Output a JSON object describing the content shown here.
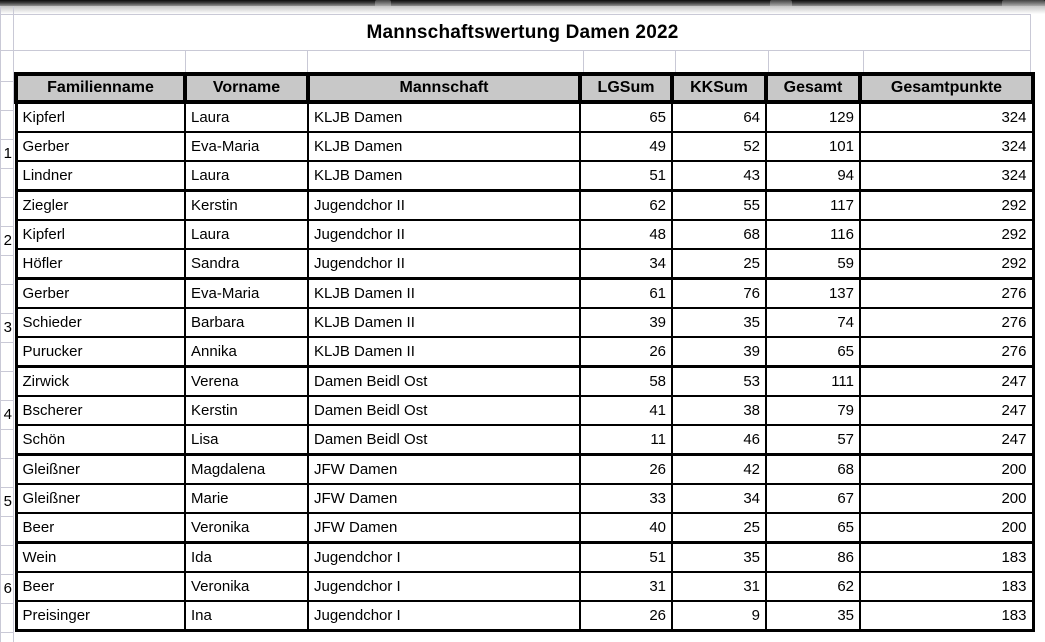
{
  "window": {
    "tab_strip_color": "#2a2a2a"
  },
  "sheet": {
    "title": "Mannschaftswertung Damen 2022",
    "grid_color": "#c9c9d6",
    "header_bg": "#c8c8c8",
    "table_border_color": "#000000",
    "columns": [
      "Familienname",
      "Vorname",
      "Mannschaft",
      "LGSum",
      "KKSum",
      "Gesamt",
      "Gesamtpunkte"
    ],
    "column_alignments": [
      "left",
      "left",
      "left",
      "right",
      "right",
      "right",
      "right"
    ],
    "rows": [
      {
        "rank": "",
        "cells": [
          "Kipferl",
          "Laura",
          "KLJB Damen",
          "65",
          "64",
          "129",
          "324"
        ]
      },
      {
        "rank": "1",
        "cells": [
          "Gerber",
          "Eva-Maria",
          "KLJB Damen",
          "49",
          "52",
          "101",
          "324"
        ]
      },
      {
        "rank": "",
        "cells": [
          "Lindner",
          "Laura",
          "KLJB Damen",
          "51",
          "43",
          "94",
          "324"
        ]
      },
      {
        "rank": "",
        "cells": [
          "Ziegler",
          "Kerstin",
          "Jugendchor II",
          "62",
          "55",
          "117",
          "292"
        ]
      },
      {
        "rank": "2",
        "cells": [
          "Kipferl",
          "Laura",
          "Jugendchor II",
          "48",
          "68",
          "116",
          "292"
        ]
      },
      {
        "rank": "",
        "cells": [
          "Höfler",
          "Sandra",
          "Jugendchor II",
          "34",
          "25",
          "59",
          "292"
        ]
      },
      {
        "rank": "",
        "cells": [
          "Gerber",
          "Eva-Maria",
          "KLJB Damen II",
          "61",
          "76",
          "137",
          "276"
        ]
      },
      {
        "rank": "3",
        "cells": [
          "Schieder",
          "Barbara",
          "KLJB Damen II",
          "39",
          "35",
          "74",
          "276"
        ]
      },
      {
        "rank": "",
        "cells": [
          "Purucker",
          "Annika",
          "KLJB Damen II",
          "26",
          "39",
          "65",
          "276"
        ]
      },
      {
        "rank": "",
        "cells": [
          "Zirwick",
          "Verena",
          "Damen Beidl Ost",
          "58",
          "53",
          "111",
          "247"
        ]
      },
      {
        "rank": "4",
        "cells": [
          "Bscherer",
          "Kerstin",
          "Damen Beidl Ost",
          "41",
          "38",
          "79",
          "247"
        ]
      },
      {
        "rank": "",
        "cells": [
          "Schön",
          "Lisa",
          "Damen Beidl Ost",
          "11",
          "46",
          "57",
          "247"
        ]
      },
      {
        "rank": "",
        "cells": [
          "Gleißner",
          "Magdalena",
          "JFW Damen",
          "26",
          "42",
          "68",
          "200"
        ]
      },
      {
        "rank": "5",
        "cells": [
          "Gleißner",
          "Marie",
          "JFW Damen",
          "33",
          "34",
          "67",
          "200"
        ]
      },
      {
        "rank": "",
        "cells": [
          "Beer",
          "Veronika",
          "JFW Damen",
          "40",
          "25",
          "65",
          "200"
        ]
      },
      {
        "rank": "",
        "cells": [
          "Wein",
          "Ida",
          "Jugendchor I",
          "51",
          "35",
          "86",
          "183"
        ]
      },
      {
        "rank": "6",
        "cells": [
          "Beer",
          "Veronika",
          "Jugendchor I",
          "31",
          "31",
          "62",
          "183"
        ]
      },
      {
        "rank": "",
        "cells": [
          "Preisinger",
          "Ina",
          "Jugendchor I",
          "26",
          "9",
          "35",
          "183"
        ]
      }
    ]
  }
}
